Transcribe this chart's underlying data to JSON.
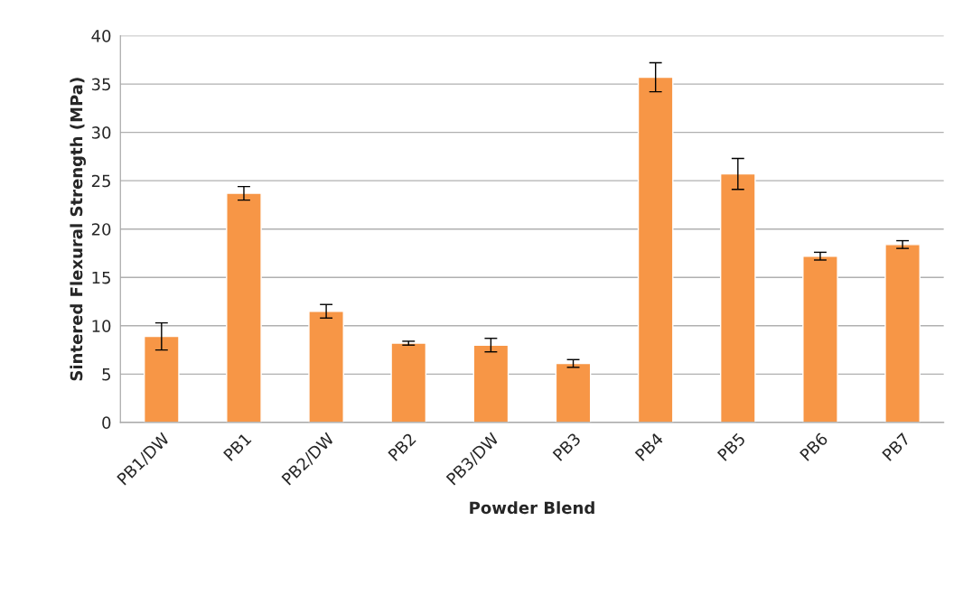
{
  "chart_data": {
    "type": "bar",
    "xlabel": "Powder Blend",
    "ylabel": "Sintered Flexural Strength (MPa)",
    "categories": [
      "PB1/DW",
      "PB1",
      "PB2/DW",
      "PB2",
      "PB3/DW",
      "PB3",
      "PB4",
      "PB5",
      "PB6",
      "PB7"
    ],
    "values": [
      8.9,
      23.7,
      11.5,
      8.2,
      8.0,
      6.1,
      35.7,
      25.7,
      17.2,
      18.4
    ],
    "errors": [
      1.4,
      0.7,
      0.7,
      0.2,
      0.7,
      0.4,
      1.5,
      1.6,
      0.4,
      0.4
    ],
    "color": "#f79646",
    "ylim": [
      0,
      40
    ],
    "yticks": [
      0,
      5,
      10,
      15,
      20,
      25,
      30,
      35,
      40
    ],
    "grid": "y",
    "legend": false
  }
}
